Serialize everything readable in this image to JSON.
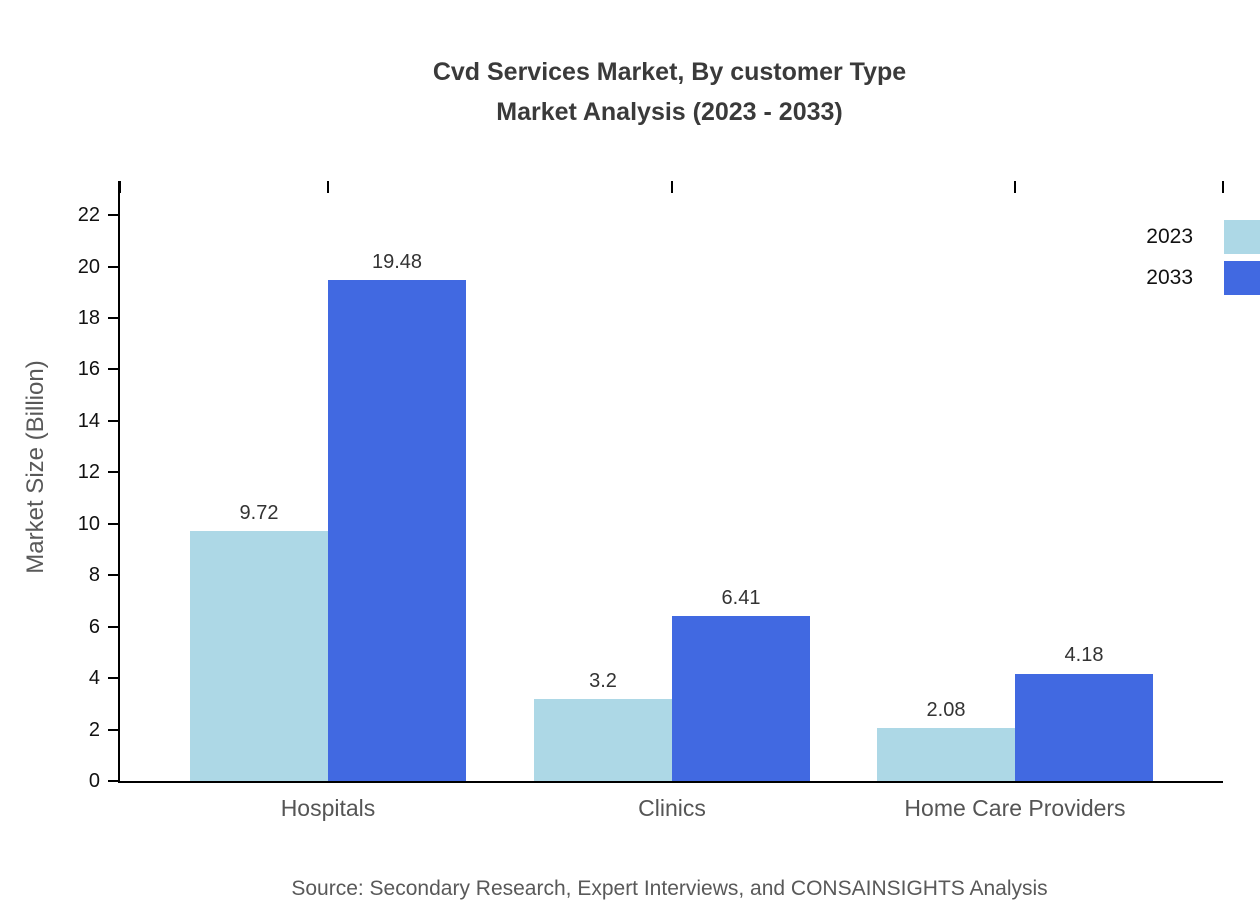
{
  "chart_data": {
    "type": "bar",
    "title_line1": "Cvd Services Market, By customer Type",
    "title_line2": "Market Analysis (2023 - 2033)",
    "ylabel": "Market Size (Billion)",
    "xlabel": "",
    "categories": [
      "Hospitals",
      "Clinics",
      "Home Care Providers"
    ],
    "series": [
      {
        "name": "2023",
        "color": "#ADD8E6",
        "values": [
          9.72,
          3.2,
          2.08
        ]
      },
      {
        "name": "2033",
        "color": "#4169E1",
        "values": [
          19.48,
          6.41,
          4.18
        ]
      }
    ],
    "ylim": [
      0,
      22
    ],
    "ytick_step": 2,
    "grid": false,
    "legend_position": "top-right",
    "axis_color": "#000000",
    "title_color": "#3a3a3a",
    "label_color": "#555555",
    "source": "Source: Secondary Research, Expert Interviews, and CONSAINSIGHTS Analysis"
  }
}
